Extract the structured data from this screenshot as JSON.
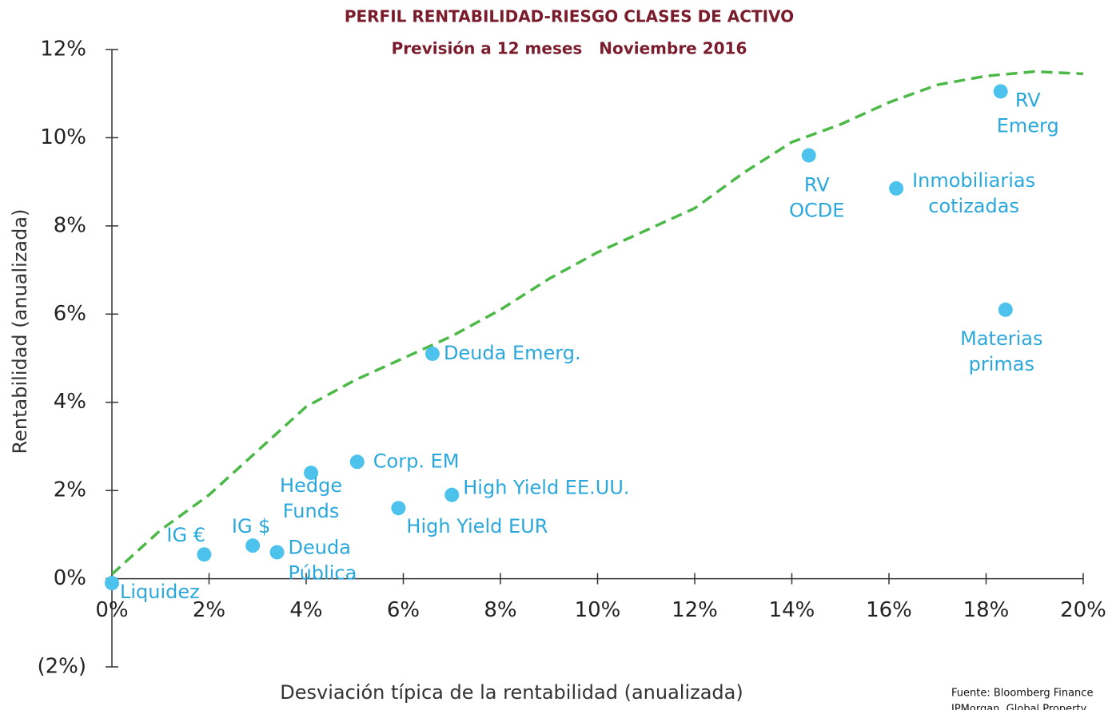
{
  "chart_data": {
    "type": "scatter",
    "title": "PERFIL RENTABILIDAD-RIESGO CLASES DE ACTIVO",
    "subtitle": "Previsión a 12 meses   Noviembre 2016",
    "x_label": "Desviación típica de la rentabilidad (anualizada)",
    "y_label": "Rentabilidad (anualizada)",
    "source": [
      "Fuente: Bloomberg Finance",
      "JPMorgan, Global Property"
    ],
    "color": "#4cc2ec",
    "label_color": "#2aa8dc",
    "labels": [
      [
        "Liquidez"
      ],
      [
        "IG €"
      ],
      [
        "IG $"
      ],
      [
        "Deuda",
        "Pública"
      ],
      [
        "Hedge",
        "Funds"
      ],
      [
        "Corp. EM"
      ],
      [
        "High Yield EUR"
      ],
      [
        "High Yield EE.UU."
      ],
      [
        "Deuda Emerg."
      ],
      [
        "RV",
        "OCDE"
      ],
      [
        "Inmobiliarias",
        "cotizadas"
      ],
      [
        "RV",
        "Emerg"
      ],
      [
        "Materias",
        "primas"
      ]
    ],
    "x": [
      0,
      1.9,
      2.9,
      3.4,
      4.1,
      5.05,
      5.9,
      7.0,
      6.6,
      14.35,
      16.15,
      18.3,
      18.4
    ],
    "values": [
      -0.1,
      0.55,
      0.75,
      0.6,
      2.4,
      2.65,
      1.6,
      1.9,
      5.1,
      9.6,
      8.85,
      11.05,
      6.1
    ],
    "frontier": {
      "color": "#4cb848",
      "x": [
        0,
        1,
        2,
        3,
        4,
        5,
        6,
        7,
        8,
        9,
        10,
        11,
        12,
        13,
        14,
        15,
        16,
        17,
        18,
        19,
        20
      ],
      "values": [
        0.1,
        1.1,
        1.9,
        2.9,
        3.9,
        4.5,
        5.0,
        5.5,
        6.1,
        6.8,
        7.4,
        7.9,
        8.4,
        9.2,
        9.9,
        10.3,
        10.8,
        11.2,
        11.4,
        11.5,
        11.45
      ]
    },
    "xlim": [
      0,
      20
    ],
    "ylim": [
      -2,
      12
    ],
    "xticks": [
      {
        "value": 0,
        "label": "0%"
      },
      {
        "value": 2,
        "label": "2%"
      },
      {
        "value": 4,
        "label": "4%"
      },
      {
        "value": 6,
        "label": "6%"
      },
      {
        "value": 8,
        "label": "8%"
      },
      {
        "value": 10,
        "label": "10%"
      },
      {
        "value": 12,
        "label": "12%"
      },
      {
        "value": 14,
        "label": "14%"
      },
      {
        "value": 16,
        "label": "16%"
      },
      {
        "value": 18,
        "label": "18%"
      },
      {
        "value": 20,
        "label": "20%"
      }
    ],
    "yticks": [
      {
        "value": -2,
        "label": "(2%)"
      },
      {
        "value": 0,
        "label": "0%"
      },
      {
        "value": 2,
        "label": "2%"
      },
      {
        "value": 4,
        "label": "4%"
      },
      {
        "value": 6,
        "label": "6%"
      },
      {
        "value": 8,
        "label": "8%"
      },
      {
        "value": 10,
        "label": "10%"
      },
      {
        "value": 12,
        "label": "12%"
      }
    ]
  }
}
